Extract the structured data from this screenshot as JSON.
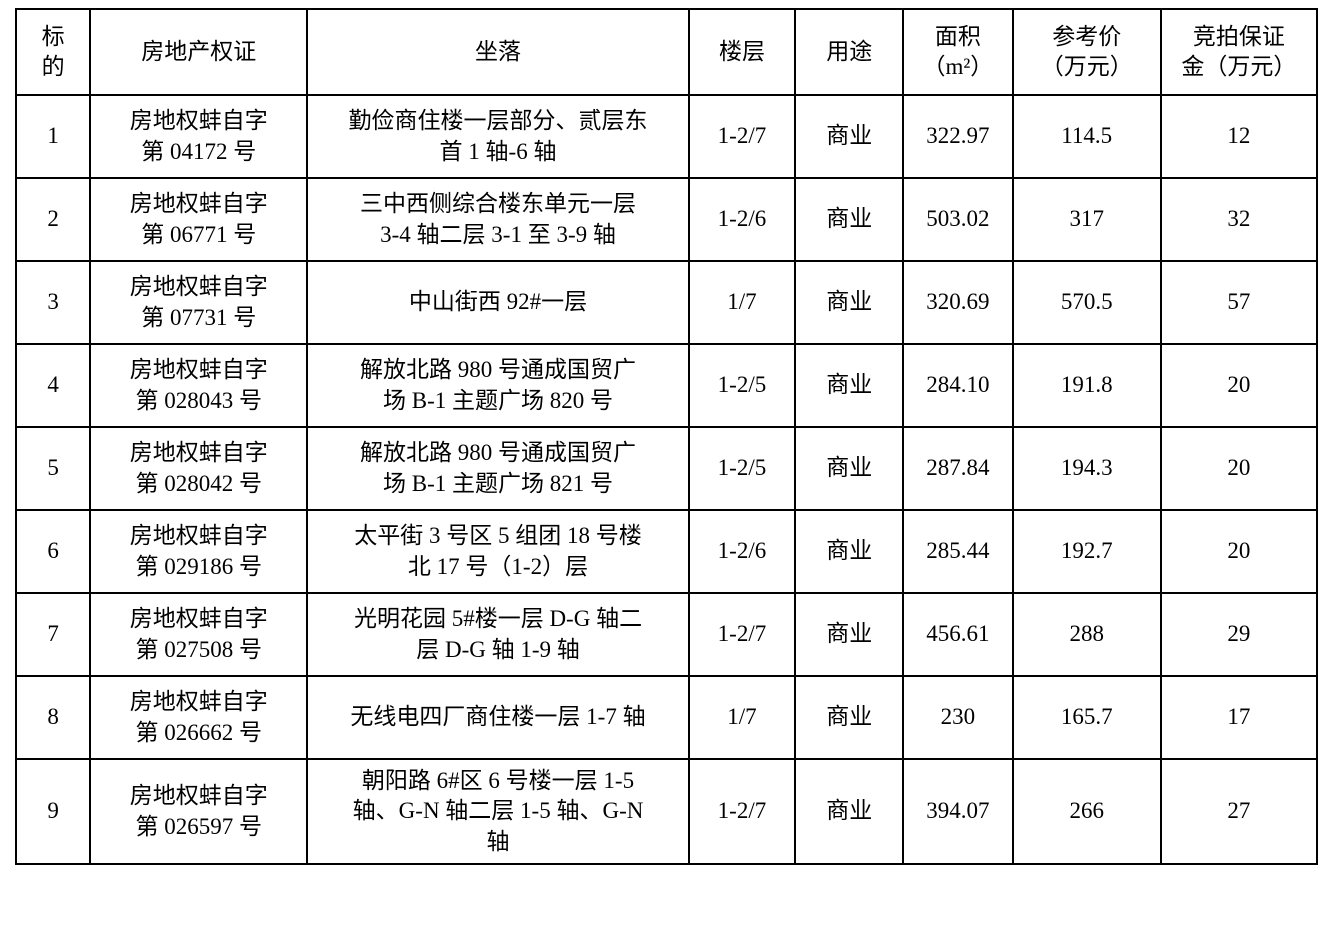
{
  "table": {
    "columns": [
      {
        "key": "id",
        "label": "标\n的"
      },
      {
        "key": "cert",
        "label": "房地产权证"
      },
      {
        "key": "location",
        "label": "坐落"
      },
      {
        "key": "floor",
        "label": "楼层"
      },
      {
        "key": "usage",
        "label": "用途"
      },
      {
        "key": "area",
        "label": "面积\n（m²）"
      },
      {
        "key": "ref_price",
        "label": "参考价\n（万元）"
      },
      {
        "key": "deposit",
        "label": "竞拍保证\n金（万元）"
      }
    ],
    "rows": [
      {
        "id": "1",
        "cert": "房地权蚌自字\n第 04172 号",
        "location": "勤俭商住楼一层部分、贰层东\n首 1 轴-6 轴",
        "floor": "1-2/7",
        "usage": "商业",
        "area": "322.97",
        "ref_price": "114.5",
        "deposit": "12"
      },
      {
        "id": "2",
        "cert": "房地权蚌自字\n第 06771 号",
        "location": "三中西侧综合楼东单元一层\n3-4 轴二层 3-1 至 3-9 轴",
        "floor": "1-2/6",
        "usage": "商业",
        "area": "503.02",
        "ref_price": "317",
        "deposit": "32"
      },
      {
        "id": "3",
        "cert": "房地权蚌自字\n第 07731 号",
        "location": "中山街西 92#一层",
        "floor": "1/7",
        "usage": "商业",
        "area": "320.69",
        "ref_price": "570.5",
        "deposit": "57"
      },
      {
        "id": "4",
        "cert": "房地权蚌自字\n第 028043 号",
        "location": "解放北路 980 号通成国贸广\n场 B-1 主题广场 820 号",
        "floor": "1-2/5",
        "usage": "商业",
        "area": "284.10",
        "ref_price": "191.8",
        "deposit": "20"
      },
      {
        "id": "5",
        "cert": "房地权蚌自字\n第 028042 号",
        "location": "解放北路 980 号通成国贸广\n场 B-1 主题广场 821 号",
        "floor": "1-2/5",
        "usage": "商业",
        "area": "287.84",
        "ref_price": "194.3",
        "deposit": "20"
      },
      {
        "id": "6",
        "cert": "房地权蚌自字\n第 029186 号",
        "location": "太平街 3 号区 5 组团 18 号楼\n北 17 号（1-2）层",
        "floor": "1-2/6",
        "usage": "商业",
        "area": "285.44",
        "ref_price": "192.7",
        "deposit": "20"
      },
      {
        "id": "7",
        "cert": "房地权蚌自字\n第 027508 号",
        "location": "光明花园 5#楼一层 D-G 轴二\n层 D-G 轴 1-9 轴",
        "floor": "1-2/7",
        "usage": "商业",
        "area": "456.61",
        "ref_price": "288",
        "deposit": "29"
      },
      {
        "id": "8",
        "cert": "房地权蚌自字\n第 026662 号",
        "location": "无线电四厂商住楼一层 1-7 轴",
        "floor": "1/7",
        "usage": "商业",
        "area": "230",
        "ref_price": "165.7",
        "deposit": "17"
      },
      {
        "id": "9",
        "cert": "房地权蚌自字\n第 026597 号",
        "location": "朝阳路 6#区 6 号楼一层 1-5\n轴、G-N 轴二层 1-5 轴、G-N\n轴",
        "floor": "1-2/7",
        "usage": "商业",
        "area": "394.07",
        "ref_price": "266",
        "deposit": "27"
      }
    ]
  }
}
